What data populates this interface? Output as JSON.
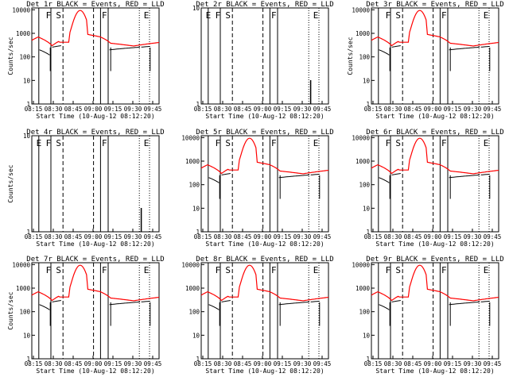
{
  "figure": {
    "background": "#ffffff"
  },
  "chart_data": [
    {
      "panel": "1r",
      "title": "Det 1r BLACK = Events, RED = LLD",
      "type": "line",
      "ylabel": "Counts/sec",
      "xlabel": "Start Time (10-Aug-12 08:12:20)",
      "x_ticks": [
        "08:15",
        "08:30",
        "08:45",
        "09:00",
        "09:15",
        "09:30",
        "09:45"
      ],
      "y_ticks": [
        "1",
        "10",
        "100",
        "1000",
        "10000"
      ],
      "ylim": [
        1,
        12000
      ],
      "y_scale": "log",
      "has_data": true,
      "markers": [
        "F",
        "S",
        "F",
        "E"
      ],
      "series": [
        {
          "name": "BLACK = Events",
          "color": "#000000"
        },
        {
          "name": "RED = LLD",
          "color": "#ff0000"
        }
      ]
    },
    {
      "panel": "2r",
      "title": "Det 2r BLACK = Events, RED = LLD",
      "type": "line",
      "ylabel": "",
      "xlabel": "Start Time (10-Aug-12 08:12:20)",
      "x_ticks": [
        "08:15",
        "08:30",
        "08:45",
        "09:00",
        "09:15",
        "09:30",
        "09:45"
      ],
      "y_ticks": [
        "1",
        "10"
      ],
      "ylim": [
        1,
        10
      ],
      "y_scale": "log",
      "has_data": false,
      "markers": [
        "E",
        "F",
        "S",
        "F",
        "E"
      ],
      "series": [
        {
          "name": "BLACK = Events",
          "color": "#000000"
        },
        {
          "name": "RED = LLD",
          "color": "#ff0000"
        }
      ]
    },
    {
      "panel": "3r",
      "title": "Det 3r BLACK = Events, RED = LLD",
      "type": "line",
      "ylabel": "Counts/sec",
      "xlabel": "Start Time (10-Aug-12 08:12:20)",
      "x_ticks": [
        "08:15",
        "08:30",
        "08:45",
        "09:00",
        "09:15",
        "09:30",
        "09:45"
      ],
      "y_ticks": [
        "1",
        "10",
        "100",
        "1000",
        "10000"
      ],
      "ylim": [
        1,
        12000
      ],
      "y_scale": "log",
      "has_data": true,
      "markers": [
        "F",
        "S",
        "F",
        "E"
      ],
      "series": [
        {
          "name": "BLACK = Events",
          "color": "#000000"
        },
        {
          "name": "RED = LLD",
          "color": "#ff0000"
        }
      ]
    },
    {
      "panel": "4r",
      "title": "Det 4r BLACK = Events, RED = LLD",
      "type": "line",
      "ylabel": "Counts/sec",
      "xlabel": "Start Time (10-Aug-12 08:12:20)",
      "x_ticks": [
        "08:15",
        "08:30",
        "08:45",
        "09:00",
        "09:15",
        "09:30",
        "09:45"
      ],
      "y_ticks": [
        "1",
        "10"
      ],
      "ylim": [
        1,
        10
      ],
      "y_scale": "log",
      "has_data": false,
      "markers": [
        "E",
        "F",
        "S",
        "F",
        "E"
      ],
      "series": [
        {
          "name": "BLACK = Events",
          "color": "#000000"
        },
        {
          "name": "RED = LLD",
          "color": "#ff0000"
        }
      ]
    },
    {
      "panel": "5r",
      "title": "Det 5r BLACK = Events, RED = LLD",
      "type": "line",
      "ylabel": "",
      "xlabel": "Start Time (10-Aug-12 08:12:20)",
      "x_ticks": [
        "08:15",
        "08:30",
        "08:45",
        "09:00",
        "09:15",
        "09:30",
        "09:45"
      ],
      "y_ticks": [
        "1",
        "10",
        "100",
        "1000",
        "10000"
      ],
      "ylim": [
        1,
        12000
      ],
      "y_scale": "log",
      "has_data": true,
      "markers": [
        "F",
        "S",
        "F",
        "E"
      ],
      "series": [
        {
          "name": "BLACK = Events",
          "color": "#000000"
        },
        {
          "name": "RED = LLD",
          "color": "#ff0000"
        }
      ]
    },
    {
      "panel": "6r",
      "title": "Det 6r BLACK = Events, RED = LLD",
      "type": "line",
      "ylabel": "",
      "xlabel": "Start Time (10-Aug-12 08:12:20)",
      "x_ticks": [
        "08:15",
        "08:30",
        "08:45",
        "09:00",
        "09:15",
        "09:30",
        "09:45"
      ],
      "y_ticks": [
        "1",
        "10",
        "100",
        "1000",
        "10000"
      ],
      "ylim": [
        1,
        12000
      ],
      "y_scale": "log",
      "has_data": true,
      "markers": [
        "F",
        "S",
        "F",
        "E"
      ],
      "series": [
        {
          "name": "BLACK = Events",
          "color": "#000000"
        },
        {
          "name": "RED = LLD",
          "color": "#ff0000"
        }
      ]
    },
    {
      "panel": "7r",
      "title": "Det 7r BLACK = Events, RED = LLD",
      "type": "line",
      "ylabel": "Counts/sec",
      "xlabel": "Start Time (10-Aug-12 08:12:20)",
      "x_ticks": [
        "08:15",
        "08:30",
        "08:45",
        "09:00",
        "09:15",
        "09:30",
        "09:45"
      ],
      "y_ticks": [
        "1",
        "10",
        "100",
        "1000",
        "10000"
      ],
      "ylim": [
        1,
        12000
      ],
      "y_scale": "log",
      "has_data": true,
      "markers": [
        "F",
        "S",
        "F",
        "E"
      ],
      "series": [
        {
          "name": "BLACK = Events",
          "color": "#000000"
        },
        {
          "name": "RED = LLD",
          "color": "#ff0000"
        }
      ]
    },
    {
      "panel": "8r",
      "title": "Det 8r BLACK = Events, RED = LLD",
      "type": "line",
      "ylabel": "",
      "xlabel": "Start Time (10-Aug-12 08:12:20)",
      "x_ticks": [
        "08:15",
        "08:30",
        "08:45",
        "09:00",
        "09:15",
        "09:30",
        "09:45"
      ],
      "y_ticks": [
        "1",
        "10",
        "100",
        "1000",
        "10000"
      ],
      "ylim": [
        1,
        12000
      ],
      "y_scale": "log",
      "has_data": true,
      "markers": [
        "F",
        "S",
        "F",
        "E"
      ],
      "series": [
        {
          "name": "BLACK = Events",
          "color": "#000000"
        },
        {
          "name": "RED = LLD",
          "color": "#ff0000"
        }
      ]
    },
    {
      "panel": "9r",
      "title": "Det 9r BLACK = Events, RED = LLD",
      "type": "line",
      "ylabel": "",
      "xlabel": "Start Time (10-Aug-12 08:12:20)",
      "x_ticks": [
        "08:15",
        "08:30",
        "08:45",
        "09:00",
        "09:15",
        "09:30",
        "09:45"
      ],
      "y_ticks": [
        "1",
        "10",
        "100",
        "1000",
        "10000"
      ],
      "ylim": [
        1,
        12000
      ],
      "y_scale": "log",
      "has_data": true,
      "markers": [
        "F",
        "S",
        "F",
        "E"
      ],
      "series": [
        {
          "name": "BLACK = Events",
          "color": "#000000"
        },
        {
          "name": "RED = LLD",
          "color": "#ff0000"
        }
      ]
    }
  ]
}
